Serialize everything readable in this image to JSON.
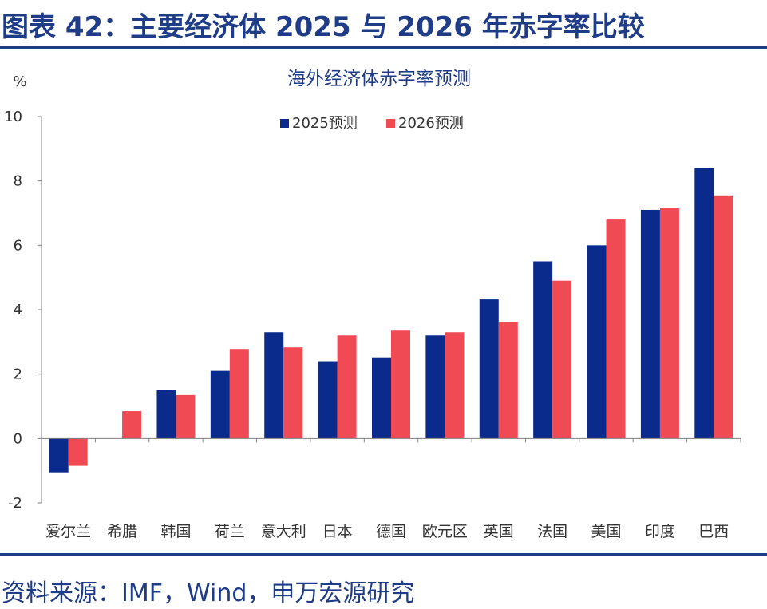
{
  "figure": {
    "title": "图表 42：主要经济体 2025 与 2026 年赤字率比较",
    "source": "资料来源：IMF，Wind，申万宏源研究"
  },
  "colors": {
    "brand": "#1f3c88",
    "series_2025": "#0a2a8c",
    "series_2026": "#f04a55"
  },
  "chart_data": {
    "type": "bar",
    "title": "海外经济体赤字率预测",
    "ylabel": "%",
    "xlabel": "",
    "ylim": [
      -2,
      10
    ],
    "yticks": [
      -2,
      0,
      2,
      4,
      6,
      8,
      10
    ],
    "grid": false,
    "legend": "top-center",
    "categories": [
      "爱尔兰",
      "希腊",
      "韩国",
      "荷兰",
      "意大利",
      "日本",
      "德国",
      "欧元区",
      "英国",
      "法国",
      "美国",
      "印度",
      "巴西"
    ],
    "series": [
      {
        "name": "2025预测",
        "values": [
          -1.05,
          null,
          1.5,
          2.1,
          3.3,
          2.4,
          2.52,
          3.2,
          4.32,
          5.5,
          6.0,
          7.1,
          8.4
        ]
      },
      {
        "name": "2026预测",
        "values": [
          -0.85,
          0.85,
          1.35,
          2.78,
          2.83,
          3.2,
          3.35,
          3.3,
          3.62,
          4.9,
          6.8,
          7.15,
          7.55
        ]
      }
    ]
  }
}
